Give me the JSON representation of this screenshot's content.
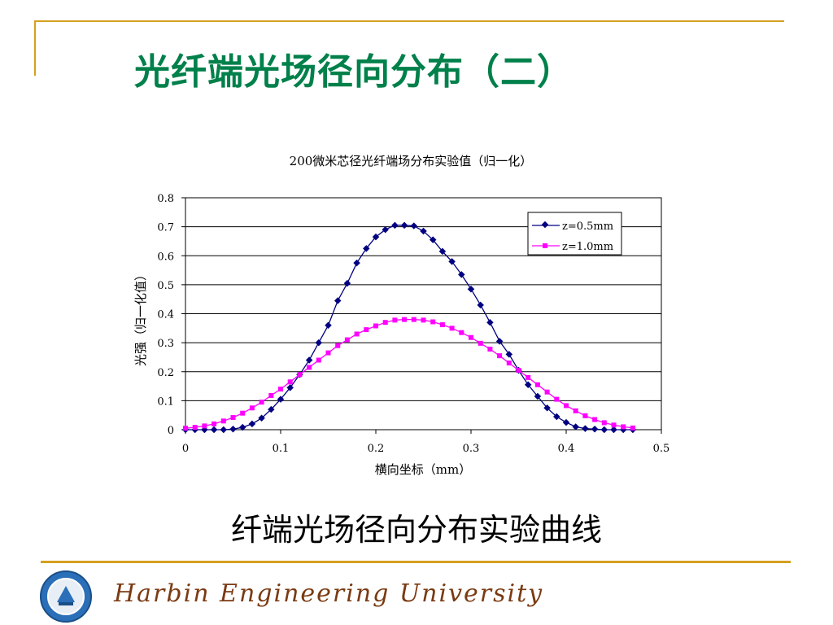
{
  "slide": {
    "title": "光纤端光场径向分布（二）",
    "caption": "纤端光场径向分布实验曲线",
    "footer_text": "Harbin Engineering University"
  },
  "colors": {
    "title": "#00804a",
    "frame": "#d4a020",
    "series_1": "#000080",
    "series_2": "#ff00ff"
  },
  "chart_data": {
    "type": "line",
    "title": "200微米芯径光纤端场分布实验值（归一化）",
    "xlabel": "横向坐标（mm）",
    "ylabel": "光强（归一化值）",
    "xlim": [
      0,
      0.5
    ],
    "ylim": [
      0,
      0.8
    ],
    "xticks": [
      "0",
      "0.1",
      "0.2",
      "0.3",
      "0.4",
      "0.5"
    ],
    "yticks": [
      "0",
      "0.1",
      "0.2",
      "0.3",
      "0.4",
      "0.5",
      "0.6",
      "0.7",
      "0.8"
    ],
    "grid": "horizontal",
    "legend": "top-right",
    "x": [
      0,
      0.01,
      0.02,
      0.03,
      0.04,
      0.05,
      0.06,
      0.07,
      0.08,
      0.09,
      0.1,
      0.11,
      0.12,
      0.13,
      0.14,
      0.15,
      0.16,
      0.17,
      0.18,
      0.19,
      0.2,
      0.21,
      0.22,
      0.23,
      0.24,
      0.25,
      0.26,
      0.27,
      0.28,
      0.29,
      0.3,
      0.31,
      0.32,
      0.33,
      0.34,
      0.35,
      0.36,
      0.37,
      0.38,
      0.39,
      0.4,
      0.41,
      0.42,
      0.43,
      0.44,
      0.45,
      0.46,
      0.47
    ],
    "series": [
      {
        "name": "z=0.5mm",
        "marker": "diamond",
        "values": [
          0,
          0,
          0,
          0,
          0,
          0.002,
          0.008,
          0.02,
          0.04,
          0.07,
          0.105,
          0.145,
          0.19,
          0.24,
          0.3,
          0.36,
          0.445,
          0.505,
          0.575,
          0.625,
          0.665,
          0.69,
          0.705,
          0.705,
          0.703,
          0.685,
          0.655,
          0.615,
          0.58,
          0.535,
          0.485,
          0.43,
          0.37,
          0.305,
          0.26,
          0.205,
          0.155,
          0.115,
          0.075,
          0.045,
          0.025,
          0.01,
          0.004,
          0.002,
          0,
          0,
          0,
          0
        ]
      },
      {
        "name": "z=1.0mm",
        "marker": "square",
        "values": [
          0.005,
          0.008,
          0.013,
          0.02,
          0.03,
          0.042,
          0.057,
          0.075,
          0.095,
          0.118,
          0.14,
          0.165,
          0.19,
          0.215,
          0.24,
          0.265,
          0.29,
          0.31,
          0.33,
          0.345,
          0.358,
          0.37,
          0.378,
          0.38,
          0.38,
          0.378,
          0.372,
          0.362,
          0.35,
          0.335,
          0.318,
          0.298,
          0.278,
          0.255,
          0.23,
          0.205,
          0.18,
          0.155,
          0.13,
          0.105,
          0.083,
          0.065,
          0.048,
          0.035,
          0.024,
          0.016,
          0.01,
          0.006
        ]
      }
    ]
  }
}
